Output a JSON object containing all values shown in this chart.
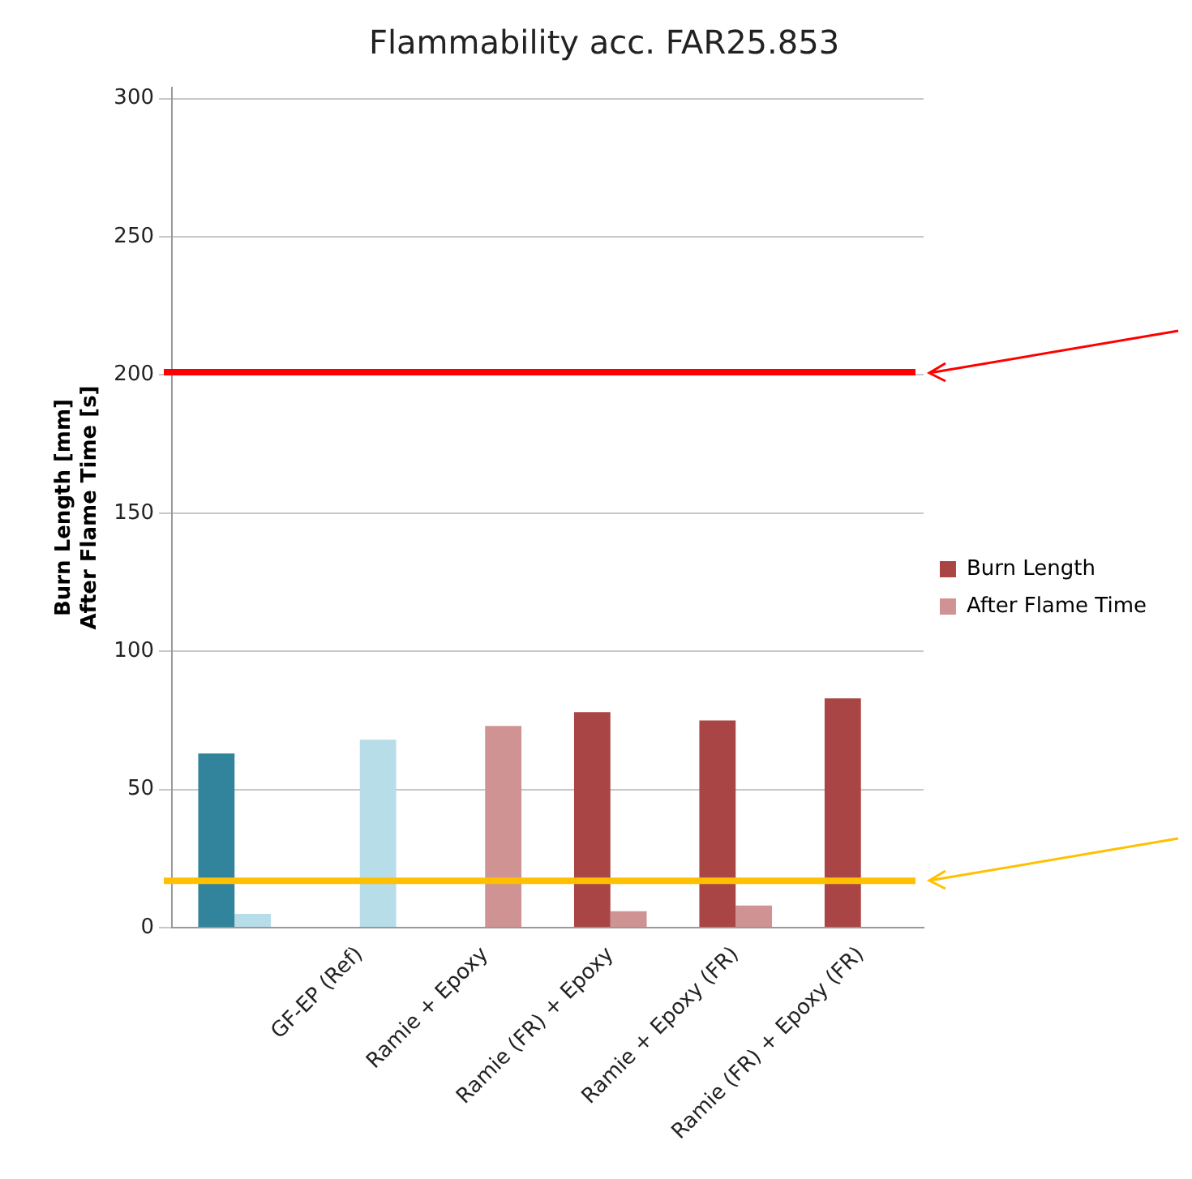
{
  "chart_data": {
    "type": "bar",
    "title": "Flammability acc. FAR25.853",
    "ylabel": "Burn Length [mm]\nAfter Flame Time [s]",
    "categories": [
      null,
      "GF-EP (Ref)",
      "Ramie + Epoxy",
      "Ramie (FR) + Epoxy",
      "Ramie + Epoxy (FR)",
      "Ramie (FR) + Epoxy (FR)"
    ],
    "series": [
      {
        "name": "Burn Length",
        "color": "#a94645",
        "colors": [
          "#31849b",
          "#31849b",
          "#a94645",
          "#a94645",
          "#a94645",
          "#a94645"
        ],
        "values": [
          63,
          null,
          null,
          78,
          75,
          83
        ]
      },
      {
        "name": "After Flame Time",
        "color": "#d09394",
        "colors": [
          "#b7dde8",
          "#b7dde8",
          "#d09394",
          "#d09394",
          "#d09394",
          "#d09394"
        ],
        "values": [
          5,
          68,
          73,
          6,
          8,
          null
        ]
      }
    ],
    "ylim": [
      0,
      304
    ],
    "yticks": [
      0,
      50,
      100,
      150,
      200,
      250,
      300
    ],
    "grid": "y",
    "legend": "right",
    "ref_lines": [
      {
        "axis": "y",
        "value": 201,
        "color": "#ff0000"
      },
      {
        "axis": "y",
        "value": 17,
        "color": "#ffc000"
      }
    ]
  }
}
